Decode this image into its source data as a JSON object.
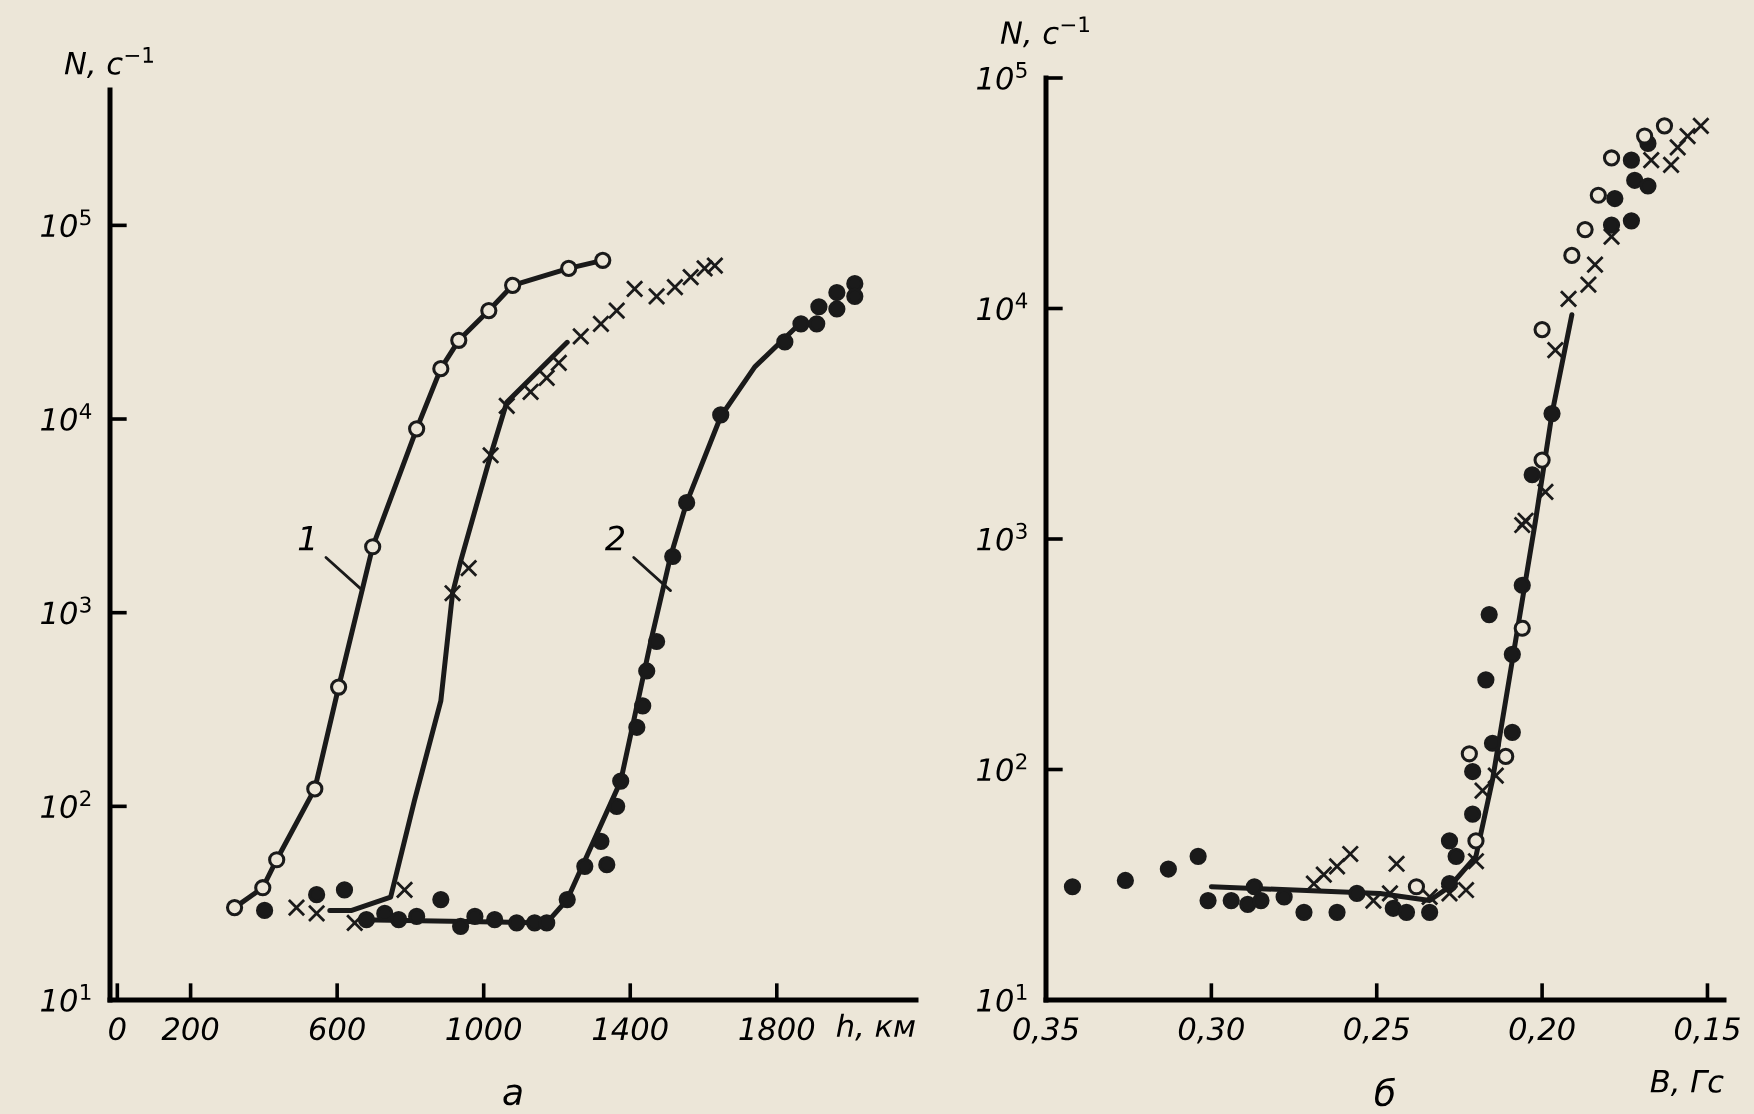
{
  "chart_data": [
    {
      "type": "scatter",
      "log": true,
      "xlabel": "h, км",
      "ylabel": "N, с$^{−1}$",
      "xlim": [
        -20,
        2180
      ],
      "xticks": [
        0,
        200,
        600,
        1000,
        1400,
        1800
      ],
      "ylim": [
        10,
        500000
      ],
      "yticks": [
        {
          "value": 10,
          "label": "10$^{1}$"
        },
        {
          "value": 100,
          "label": "10$^{2}$"
        },
        {
          "value": 1000,
          "label": "10$^{3}$"
        },
        {
          "value": 10000,
          "label": "10$^{4}$"
        },
        {
          "value": 100000,
          "label": "10$^{5}$"
        }
      ],
      "annotations": [
        {
          "text": "1",
          "x": 670,
          "y": 1300
        },
        {
          "text": "2",
          "x": 1510,
          "y": 1300
        },
        "а"
      ],
      "series": [
        {
          "marker": "open circle",
          "color": "#1a1a1a",
          "x": [
            320,
            397,
            435,
            539,
            604,
            697,
            817,
            883,
            932,
            1014,
            1079,
            1232,
            1325
          ],
          "values": [
            30,
            38,
            53,
            123,
            413,
            2190,
            8900,
            18200,
            25500,
            36300,
            49000,
            60000,
            66000
          ]
        },
        {
          "marker": "cross",
          "color": "#1a1a1a",
          "x": [
            489,
            544,
            648,
            784,
            915,
            959,
            1019,
            1063,
            1128,
            1172,
            1205,
            1265,
            1320,
            1363,
            1412,
            1472,
            1522,
            1565,
            1603,
            1631
          ],
          "values": [
            30,
            28,
            25,
            37,
            1260,
            1700,
            6500,
            11700,
            13800,
            16300,
            19500,
            26700,
            31000,
            36300,
            47000,
            43000,
            48000,
            54000,
            60000,
            62000
          ]
        },
        {
          "marker": "circle",
          "color": "#1a1a1a",
          "x": [
            402,
            544,
            620,
            680,
            730,
            768,
            817,
            883,
            937,
            976,
            1030,
            1090,
            1139,
            1172,
            1228,
            1276,
            1336,
            1320,
            1363,
            1374,
            1418,
            1434,
            1445,
            1472,
            1516,
            1554,
            1647,
            1822,
            1866,
            1909,
            1915,
            1964,
            1964,
            2013,
            2013
          ],
          "values": [
            29,
            35,
            37,
            26,
            28,
            26,
            27,
            33,
            24,
            27,
            26,
            25,
            25,
            25,
            33,
            49,
            50,
            66,
            100,
            135,
            256,
            330,
            500,
            710,
            1950,
            3700,
            10500,
            25000,
            31000,
            31000,
            38000,
            37000,
            45000,
            50000,
            43000
          ]
        },
        {
          "type": "line",
          "marker": "none",
          "line_style": "solid",
          "color": "#1a1a1a",
          "x": [
            320,
            397,
            435,
            539,
            604,
            697,
            817,
            883,
            932,
            1014,
            1079,
            1232,
            1325
          ],
          "values": [
            30,
            38,
            53,
            123,
            413,
            2190,
            8900,
            18200,
            25500,
            36300,
            49000,
            60000,
            66000
          ]
        },
        {
          "type": "line",
          "marker": "none",
          "line_style": "solid",
          "color": "#1a1a1a",
          "x": [
            580,
            640,
            746,
            811,
            883,
            915,
            937,
            1019,
            1063,
            1228
          ],
          "values": [
            29,
            29,
            34,
            107,
            350,
            1260,
            1840,
            6500,
            12200,
            24900
          ]
        },
        {
          "type": "line",
          "marker": "none",
          "line_style": "solid",
          "color": "#1a1a1a",
          "x": [
            664,
            1172,
            1228,
            1374,
            1456,
            1510,
            1554,
            1647,
            1740,
            1866
          ],
          "values": [
            26,
            25,
            33,
            135,
            710,
            1950,
            3700,
            10300,
            18600,
            31500
          ]
        }
      ]
    },
    {
      "type": "scatter",
      "log": true,
      "xlabel": "B, Гс",
      "ylabel": "N, с$^{−1}$",
      "xlim": [
        0.35,
        0.145
      ],
      "xticks": [
        {
          "value": 0.35,
          "label": "0,35"
        },
        {
          "value": 0.3,
          "label": "0,30"
        },
        {
          "value": 0.25,
          "label": "0,25"
        },
        {
          "value": 0.2,
          "label": "0,20"
        },
        {
          "value": 0.15,
          "label": "0,15"
        }
      ],
      "ylim": [
        10,
        100000
      ],
      "yticks": [
        {
          "value": 10,
          "label": "10$^{1}$"
        },
        {
          "value": 100,
          "label": "10$^{2}$"
        },
        {
          "value": 1000,
          "label": "10$^{3}$"
        },
        {
          "value": 10000,
          "label": "10$^{4}$"
        },
        {
          "value": 100000,
          "label": "10$^{5}$"
        }
      ],
      "annotations": [
        "б"
      ],
      "series": [
        {
          "marker": "circle",
          "color": "#1a1a1a",
          "x": [
            0.342,
            0.326,
            0.313,
            0.304,
            0.301,
            0.294,
            0.289,
            0.285,
            0.287,
            0.278,
            0.272,
            0.262,
            0.256,
            0.245,
            0.241,
            0.234,
            0.228,
            0.226,
            0.228,
            0.221,
            0.221,
            0.217,
            0.216,
            0.215,
            0.209,
            0.206,
            0.209,
            0.203,
            0.197,
            0.179,
            0.173,
            0.178,
            0.172,
            0.168,
            0.173,
            0.168
          ],
          "values": [
            31,
            33,
            37,
            42,
            27,
            27,
            26,
            27,
            31,
            28,
            24,
            24,
            29,
            25,
            24,
            24,
            49,
            42,
            32,
            64,
            98,
            245,
            470,
            130,
            145,
            630,
            316,
            1900,
            3500,
            23000,
            24000,
            30000,
            36000,
            34000,
            44000,
            52000
          ]
        },
        {
          "marker": "open circle",
          "color": "#1a1a1a",
          "x": [
            0.238,
            0.222,
            0.22,
            0.211,
            0.206,
            0.2,
            0.2,
            0.191,
            0.187,
            0.183,
            0.179,
            0.169,
            0.163
          ],
          "values": [
            31,
            117,
            49,
            114,
            410,
            2200,
            8100,
            17000,
            22000,
            31000,
            45000,
            56000,
            62000
          ]
        },
        {
          "marker": "cross",
          "color": "#1a1a1a",
          "x": [
            0.269,
            0.266,
            0.262,
            0.258,
            0.251,
            0.246,
            0.244,
            0.234,
            0.228,
            0.223,
            0.22,
            0.218,
            0.214,
            0.206,
            0.205,
            0.199,
            0.196,
            0.192,
            0.186,
            0.184,
            0.179,
            0.167,
            0.161,
            0.159,
            0.156,
            0.152
          ],
          "values": [
            32,
            35,
            38,
            43,
            27,
            29,
            39,
            28,
            29,
            30,
            40,
            81,
            94,
            1150,
            1200,
            1600,
            6600,
            11000,
            12700,
            15500,
            20500,
            44000,
            42000,
            50000,
            56000,
            62000
          ]
        },
        {
          "type": "line",
          "marker": "none",
          "line_style": "solid",
          "color": "#1a1a1a",
          "x": [
            0.3,
            0.249,
            0.234,
            0.228,
            0.22,
            0.215,
            0.202,
            0.197,
            0.191
          ],
          "values": [
            31,
            29,
            27,
            31,
            42,
            90,
            1200,
            3500,
            9400
          ]
        }
      ]
    }
  ]
}
